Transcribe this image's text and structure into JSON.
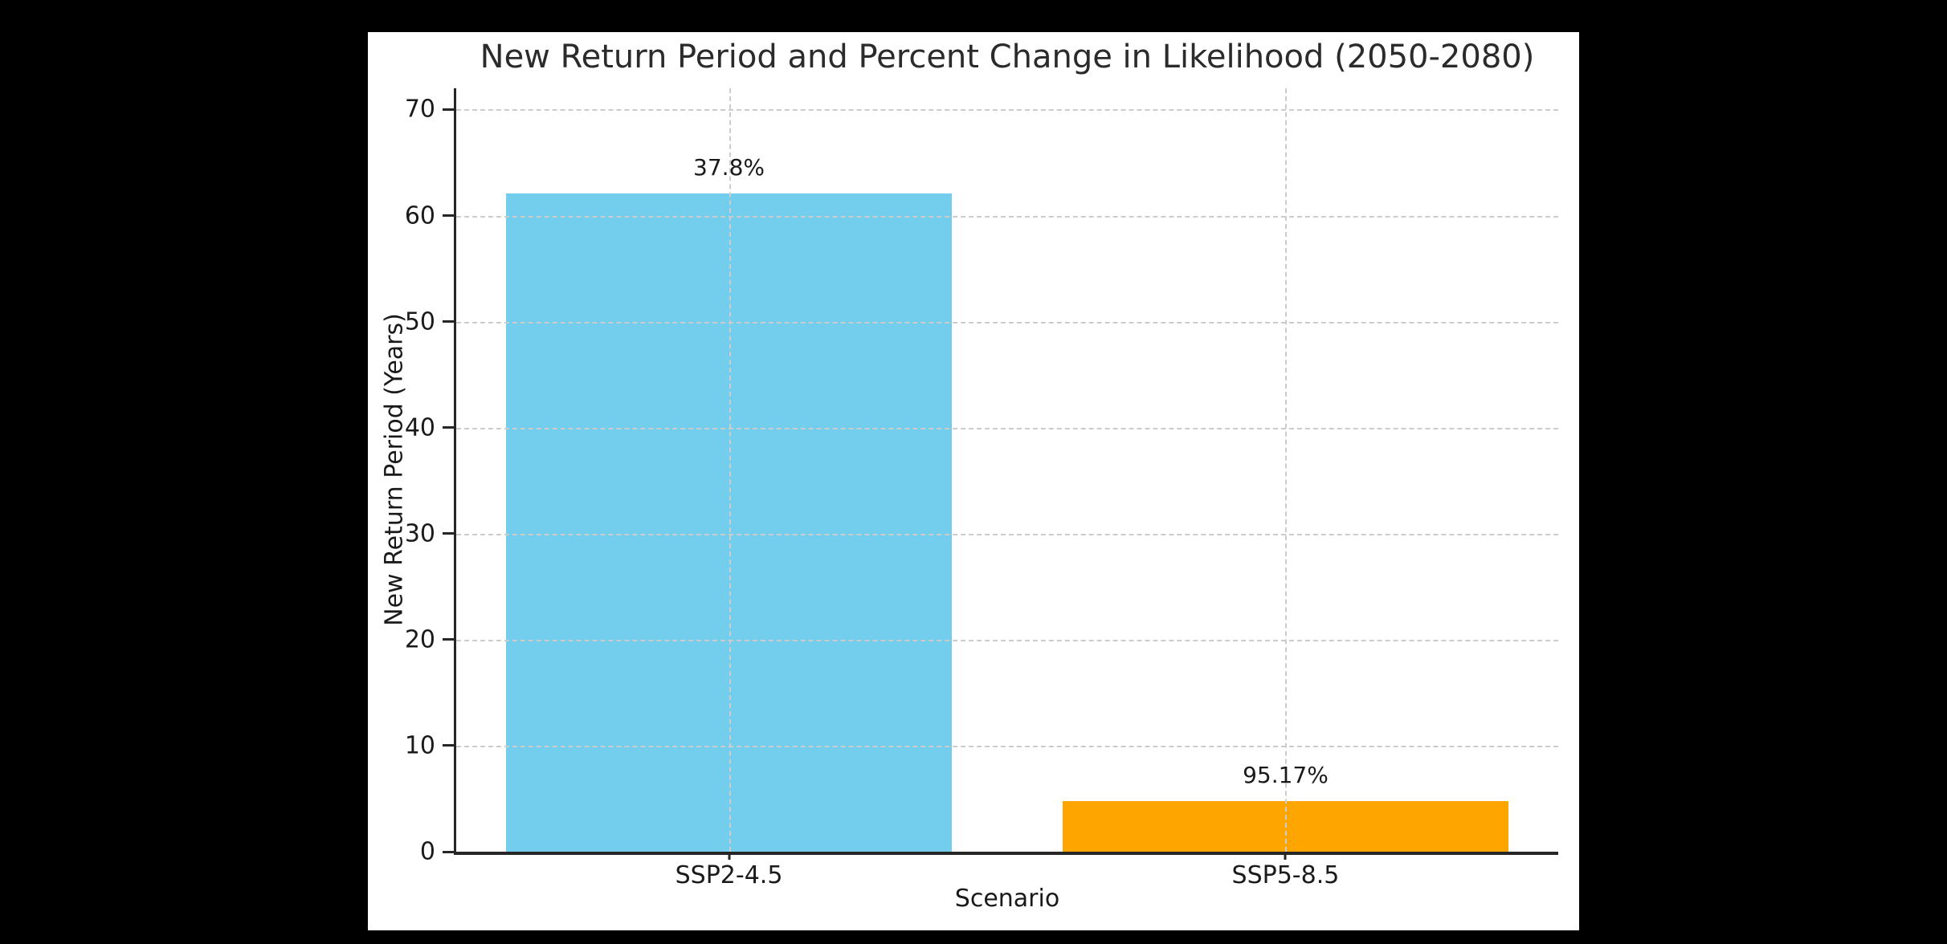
{
  "window": {
    "background_color": "#000000",
    "figure_background": "#ffffff"
  },
  "chart_data": {
    "type": "bar",
    "title": "New Return Period and Percent Change in Likelihood (2050-2080)",
    "xlabel": "Scenario",
    "ylabel": "New Return Period (Years)",
    "categories": [
      "SSP2-4.5",
      "SSP5-8.5"
    ],
    "values": [
      62.1,
      4.8
    ],
    "bar_labels": [
      "37.8%",
      "95.17%"
    ],
    "bar_colors": [
      "#72CEEC",
      "#FFA500"
    ],
    "ylim": [
      0,
      72
    ],
    "yticks": [
      0,
      10,
      20,
      30,
      40,
      50,
      60,
      70
    ],
    "xlim": [
      -0.49,
      1.49
    ],
    "bar_width_units": 0.8,
    "grid": true,
    "grid_on_top": true,
    "grid_color": "#cccccc",
    "grid_style": "dashed",
    "axis_color": "#262626",
    "text_color": "#1a1a1a",
    "legend_position": "none"
  }
}
